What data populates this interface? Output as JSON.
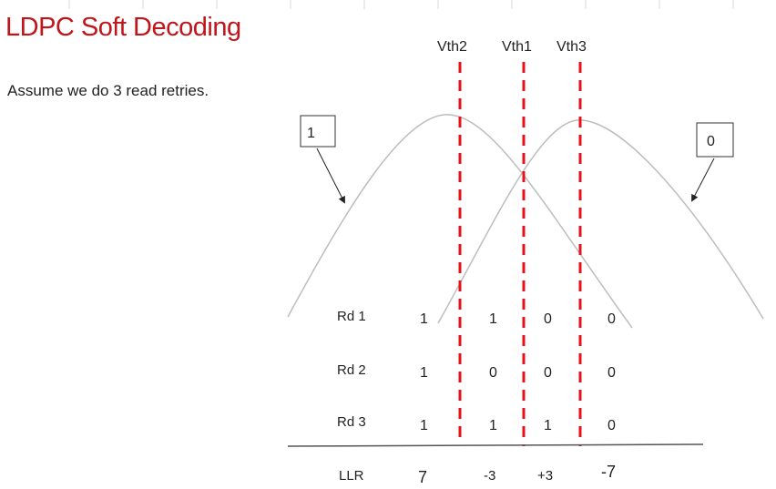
{
  "slide": {
    "title": "LDPC Soft Decoding",
    "subtitle": "Assume we do 3 read retries."
  },
  "thresholds": [
    {
      "label": "Vth2"
    },
    {
      "label": "Vth1"
    },
    {
      "label": "Vth3"
    }
  ],
  "callouts": {
    "left": "1",
    "right": "0"
  },
  "table": {
    "rows": [
      {
        "label": "Rd 1",
        "bits": [
          "1",
          "1",
          "0",
          "0"
        ]
      },
      {
        "label": "Rd 2",
        "bits": [
          "1",
          "0",
          "0",
          "0"
        ]
      },
      {
        "label": "Rd 3",
        "bits": [
          "1",
          "1",
          "1",
          "0"
        ]
      }
    ],
    "llr_label": "LLR",
    "llr_values": [
      "7",
      "-3",
      "+3",
      "-7"
    ]
  },
  "colors": {
    "title": "#c0161b",
    "threshold_line": "#e8101a",
    "curve": "#bdbdbd"
  }
}
